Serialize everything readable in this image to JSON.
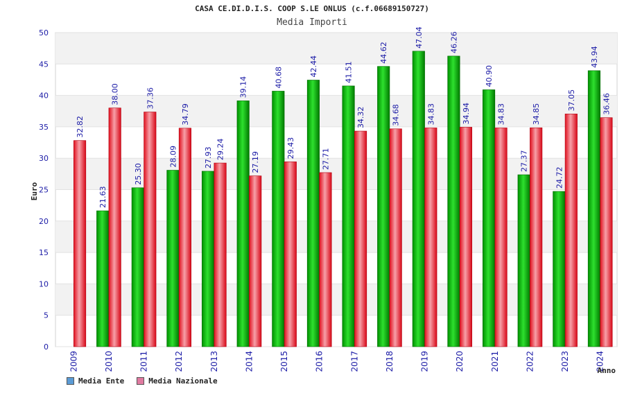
{
  "chart_data": {
    "type": "bar",
    "title": "CASA CE.DI.D.I.S. COOP S.LE ONLUS (c.f.06689150727)",
    "subtitle": "Media Importi",
    "xlabel": "Anno",
    "ylabel": "Euro",
    "ylim": [
      0,
      50
    ],
    "yticks": [
      "0",
      "5",
      "10",
      "15",
      "20",
      "25",
      "30",
      "35",
      "40",
      "45",
      "50"
    ],
    "grid": true,
    "legend_position": "bottom-left",
    "categories": [
      "2009",
      "2010",
      "2011",
      "2012",
      "2013",
      "2014",
      "2015",
      "2016",
      "2017",
      "2018",
      "2019",
      "2020",
      "2021",
      "2022",
      "2023",
      "2024"
    ],
    "series": [
      {
        "name": "Media Ente",
        "color": "#0fbf0f",
        "legend_color": "#5b9bd5",
        "values": [
          null,
          21.63,
          25.3,
          28.09,
          27.93,
          39.14,
          40.68,
          42.44,
          41.51,
          44.62,
          47.04,
          46.26,
          40.9,
          27.37,
          24.72,
          43.94
        ],
        "labels": [
          "",
          "21.63",
          "25.30",
          "28.09",
          "27.93",
          "39.14",
          "40.68",
          "42.44",
          "41.51",
          "44.62",
          "47.04",
          "46.26",
          "40.90",
          "27.37",
          "24.72",
          "43.94"
        ]
      },
      {
        "name": "Media Nazionale",
        "color": "#ea1a2a",
        "legend_color": "#e07aa0",
        "values": [
          32.82,
          38.0,
          37.36,
          34.79,
          29.24,
          27.19,
          29.43,
          27.71,
          34.32,
          34.68,
          34.83,
          34.94,
          34.83,
          34.85,
          37.05,
          36.46
        ],
        "labels": [
          "32.82",
          "38.00",
          "37.36",
          "34.79",
          "29.24",
          "27.19",
          "29.43",
          "27.71",
          "34.32",
          "34.68",
          "34.83",
          "34.94",
          "34.83",
          "34.85",
          "37.05",
          "36.46"
        ]
      }
    ]
  }
}
